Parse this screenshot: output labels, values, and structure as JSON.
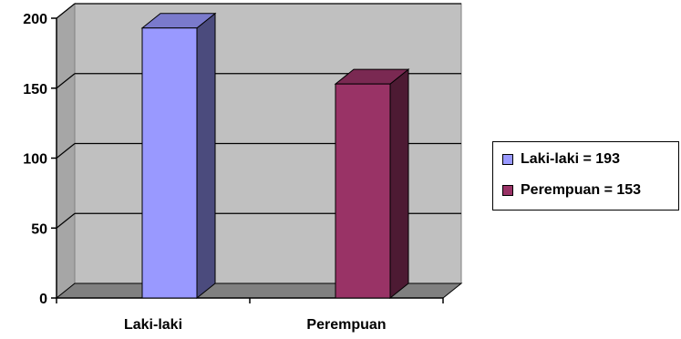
{
  "chart_data": {
    "type": "bar",
    "categories": [
      "Laki-laki",
      "Perempuan"
    ],
    "values": [
      193,
      153
    ],
    "ylim": [
      0,
      200
    ],
    "yticks": [
      "0",
      "50",
      "100",
      "150",
      "200"
    ],
    "grid": true,
    "legend_position": "right",
    "legend": [
      {
        "label": "Laki-laki = 193",
        "color": "#9999ff"
      },
      {
        "label": "Perempuan = 153",
        "color": "#993366"
      }
    ],
    "colors": {
      "bar_front": [
        "#9999ff",
        "#993366"
      ],
      "bar_side": [
        "#4b4b7d",
        "#4d1a33"
      ],
      "bar_top": [
        "#7a7acc",
        "#7a2952"
      ],
      "plot_wall": "#c0c0c0",
      "plot_floor": "#808080"
    }
  }
}
